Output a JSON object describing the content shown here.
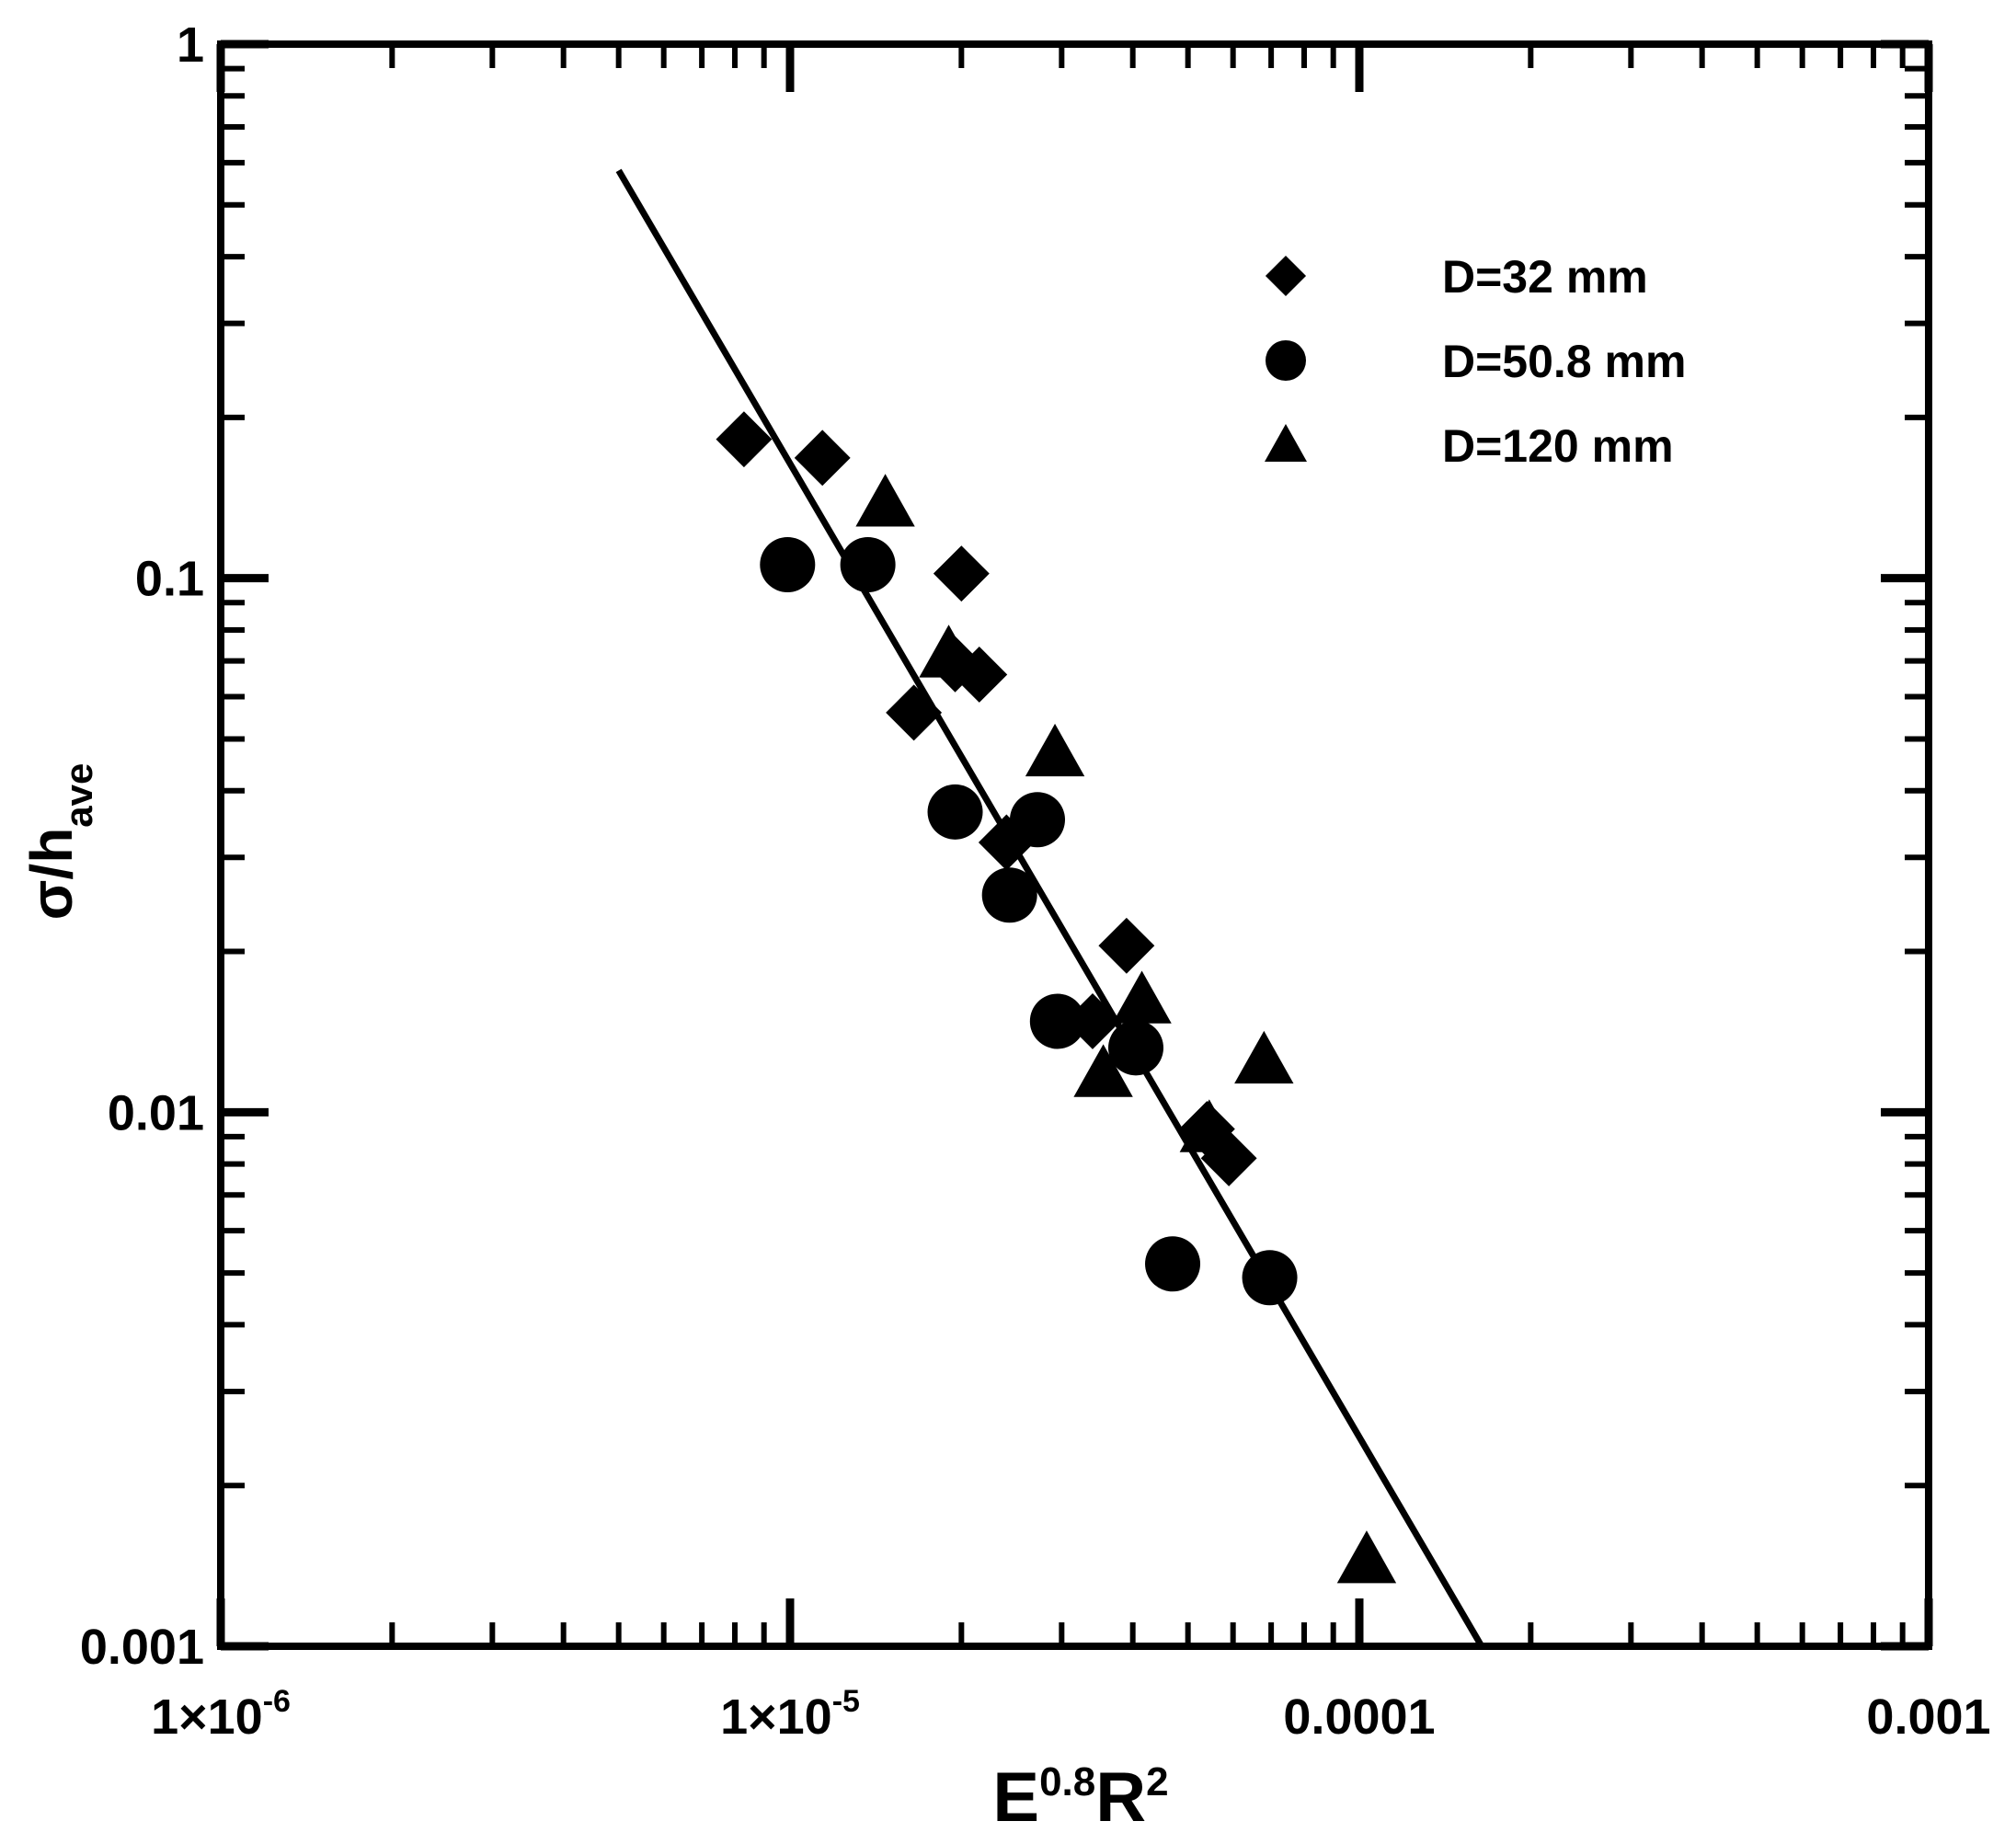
{
  "chart_data": {
    "type": "scatter",
    "x_scale": "log",
    "y_scale": "log",
    "xlim": [
      1e-06,
      0.001
    ],
    "ylim": [
      0.001,
      1
    ],
    "x_ticks": [
      {
        "value": 1e-06,
        "label": "1×10",
        "sup": "-6"
      },
      {
        "value": 1e-05,
        "label": "1×10",
        "sup": "-5"
      },
      {
        "value": 0.0001,
        "label": "0.0001",
        "sup": ""
      },
      {
        "value": 0.001,
        "label": "0.001",
        "sup": ""
      }
    ],
    "y_ticks": [
      {
        "value": 0.001,
        "label": "0.001"
      },
      {
        "value": 0.01,
        "label": "0.01"
      },
      {
        "value": 0.1,
        "label": "0.1"
      },
      {
        "value": 1,
        "label": "1"
      }
    ],
    "xlabel": {
      "base1": "E",
      "sup1": "0.8",
      "base2": "R",
      "sup2": "2"
    },
    "ylabel": {
      "base": "σ/h",
      "sub": "ave"
    },
    "grid": false,
    "legend_position": "top-right",
    "series": [
      {
        "name": "D=32 mm",
        "marker": "diamond",
        "points": [
          [
            8.3e-06,
            0.182
          ],
          [
            1.14e-05,
            0.168
          ],
          [
            2e-05,
            0.102
          ],
          [
            1.65e-05,
            0.056
          ],
          [
            1.95e-05,
            0.069
          ],
          [
            2.15e-05,
            0.066
          ],
          [
            2.4e-05,
            0.032
          ],
          [
            3.4e-05,
            0.0148
          ],
          [
            3.9e-05,
            0.0205
          ],
          [
            5.4e-05,
            0.0093
          ],
          [
            5.9e-05,
            0.0082
          ]
        ]
      },
      {
        "name": "D=50.8 mm",
        "marker": "circle",
        "points": [
          [
            9.9e-06,
            0.106
          ],
          [
            1.37e-05,
            0.106
          ],
          [
            1.95e-05,
            0.0365
          ],
          [
            2.72e-05,
            0.0353
          ],
          [
            2.43e-05,
            0.0255
          ],
          [
            2.95e-05,
            0.0148
          ],
          [
            4.05e-05,
            0.0132
          ],
          [
            4.7e-05,
            0.0052
          ],
          [
            6.96e-05,
            0.0049
          ]
        ]
      },
      {
        "name": "D=120 mm",
        "marker": "triangle",
        "points": [
          [
            1.47e-05,
            0.138
          ],
          [
            1.9e-05,
            0.072
          ],
          [
            2.92e-05,
            0.047
          ],
          [
            3.55e-05,
            0.0118
          ],
          [
            4.15e-05,
            0.0162
          ],
          [
            5.45e-05,
            0.0093
          ],
          [
            6.8e-05,
            0.0125
          ],
          [
            0.000103,
            0.00145
          ]
        ]
      }
    ],
    "fit_line": {
      "x": [
        5e-06,
        0.000164
      ],
      "y": [
        0.58,
        0.001
      ]
    }
  }
}
